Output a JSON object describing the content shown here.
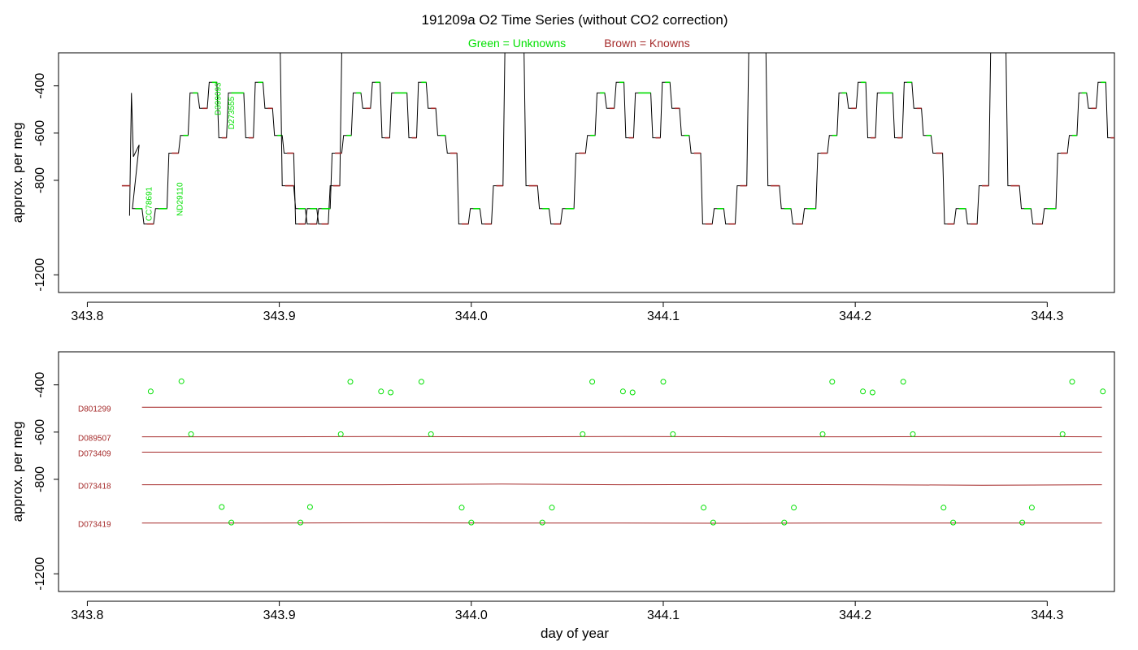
{
  "figure": {
    "title": "191209a   O2 Time Series (without CO2 correction)",
    "legend_unknowns": "Green = Unknowns",
    "legend_knowns": "Brown = Knowns",
    "xlabel": "day of year",
    "colors": {
      "unknown": "#00e000",
      "known": "#a52a2a",
      "line": "#000000",
      "axis": "#000000"
    }
  },
  "chart_data": [
    {
      "type": "line",
      "title": "191209a   O2 Time Series (without CO2 correction)",
      "xlabel": "",
      "ylabel": "approx. per meg",
      "xlim": [
        343.785,
        344.335
      ],
      "ylim": [
        -1275,
        -260
      ],
      "xticks": [
        343.8,
        343.9,
        344.0,
        344.1,
        344.2,
        344.3
      ],
      "xtick_labels": [
        "343.8",
        "343.9",
        "344.0",
        "344.1",
        "344.2",
        "344.3"
      ],
      "yticks": [
        -400,
        -600,
        -800,
        -1200
      ],
      "ytick_labels": [
        "-400",
        "-600",
        "-800",
        "-1200"
      ],
      "cycle_starts": [
        343.8245,
        343.9015,
        344.0285,
        344.1545,
        344.2795
      ],
      "cycle_profile": [
        [
          0.0,
          -823
        ],
        [
          0.006,
          -823
        ],
        [
          0.007,
          -920
        ],
        [
          0.012,
          -920
        ],
        [
          0.013,
          -985
        ],
        [
          0.018,
          -985
        ],
        [
          0.019,
          -920
        ],
        [
          0.025,
          -920
        ],
        [
          0.026,
          -685
        ],
        [
          0.031,
          -685
        ],
        [
          0.032,
          -610
        ],
        [
          0.036,
          -610
        ],
        [
          0.037,
          -430
        ],
        [
          0.041,
          -430
        ],
        [
          0.042,
          -495
        ],
        [
          0.046,
          -495
        ],
        [
          0.047,
          -385
        ],
        [
          0.051,
          -385
        ],
        [
          0.052,
          -620
        ],
        [
          0.056,
          -620
        ],
        [
          0.057,
          -430
        ],
        [
          0.065,
          -430
        ],
        [
          0.066,
          -620
        ],
        [
          0.07,
          -620
        ],
        [
          0.071,
          -385
        ],
        [
          0.075,
          -385
        ],
        [
          0.076,
          -495
        ],
        [
          0.08,
          -495
        ],
        [
          0.081,
          -610
        ],
        [
          0.085,
          -610
        ],
        [
          0.086,
          -685
        ],
        [
          0.091,
          -685
        ],
        [
          0.092,
          -985
        ],
        [
          0.097,
          -985
        ],
        [
          0.098,
          -920
        ],
        [
          0.103,
          -920
        ],
        [
          0.104,
          -985
        ],
        [
          0.109,
          -985
        ],
        [
          0.11,
          -823
        ],
        [
          0.115,
          -823
        ],
        [
          0.116,
          -260
        ]
      ],
      "unknown_labels": [
        {
          "text": "CC78691",
          "x": 343.8335,
          "y": -900
        },
        {
          "text": "ND29110",
          "x": 343.8495,
          "y": -880
        },
        {
          "text": "D399093",
          "x": 343.8695,
          "y": -455
        },
        {
          "text": "D273555",
          "x": 343.8765,
          "y": -515
        }
      ]
    },
    {
      "type": "scatter",
      "xlabel": "day of year",
      "ylabel": "approx. per meg",
      "xlim": [
        343.785,
        344.335
      ],
      "ylim": [
        -1275,
        -260
      ],
      "xticks": [
        343.8,
        343.9,
        344.0,
        344.1,
        344.2,
        344.3
      ],
      "xtick_labels": [
        "343.8",
        "343.9",
        "344.0",
        "344.1",
        "344.2",
        "344.3"
      ],
      "yticks": [
        -400,
        -600,
        -800,
        -1200
      ],
      "ytick_labels": [
        "-400",
        "-600",
        "-800",
        "-1200"
      ],
      "knowns": [
        {
          "name": "D801299",
          "y": [
            -495,
            -495,
            -495,
            -495,
            -495,
            -495,
            -495,
            -495,
            -495
          ]
        },
        {
          "name": "D089507",
          "y": [
            -620,
            -620,
            -619,
            -620,
            -619,
            -620,
            -620,
            -619,
            -620
          ]
        },
        {
          "name": "D073409",
          "y": [
            -685,
            -685,
            -685,
            -685,
            -685,
            -685,
            -685,
            -685,
            -685
          ]
        },
        {
          "name": "D073418",
          "y": [
            -823,
            -823,
            -823,
            -820,
            -823,
            -822,
            -823,
            -825,
            -823
          ]
        },
        {
          "name": "D073419",
          "y": [
            -985,
            -985,
            -984,
            -985,
            -985,
            -986,
            -985,
            -985,
            -985
          ]
        }
      ],
      "knowns_x_range": [
        343.8285,
        344.3285
      ],
      "unknowns": [
        [
          343.833,
          -428
        ],
        [
          343.849,
          -385
        ],
        [
          343.854,
          -609
        ],
        [
          343.87,
          -917
        ],
        [
          343.875,
          -983
        ],
        [
          343.937,
          -387
        ],
        [
          343.953,
          -428
        ],
        [
          343.958,
          -432
        ],
        [
          343.974,
          -387
        ],
        [
          343.932,
          -609
        ],
        [
          343.979,
          -609
        ],
        [
          343.911,
          -983
        ],
        [
          343.916,
          -917
        ],
        [
          343.995,
          -920
        ],
        [
          344.0,
          -983
        ],
        [
          344.058,
          -609
        ],
        [
          344.063,
          -387
        ],
        [
          344.079,
          -428
        ],
        [
          344.084,
          -432
        ],
        [
          344.1,
          -387
        ],
        [
          344.105,
          -609
        ],
        [
          344.037,
          -983
        ],
        [
          344.042,
          -920
        ],
        [
          344.121,
          -920
        ],
        [
          344.126,
          -983
        ],
        [
          344.183,
          -609
        ],
        [
          344.188,
          -387
        ],
        [
          344.204,
          -428
        ],
        [
          344.209,
          -432
        ],
        [
          344.225,
          -387
        ],
        [
          344.23,
          -609
        ],
        [
          344.163,
          -983
        ],
        [
          344.168,
          -920
        ],
        [
          344.246,
          -920
        ],
        [
          344.251,
          -983
        ],
        [
          344.308,
          -609
        ],
        [
          344.313,
          -387
        ],
        [
          344.329,
          -428
        ],
        [
          344.287,
          -983
        ],
        [
          344.292,
          -920
        ]
      ]
    }
  ]
}
